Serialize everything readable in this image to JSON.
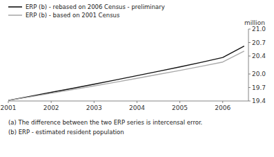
{
  "chart_data": {
    "type": "line",
    "ylabel": "million",
    "annotations": [
      "(a) The difference between the two ERP series is intercensal error.",
      "(b) ERP - estimated resident population"
    ],
    "x": [
      2001.0,
      2001.5,
      2002.0,
      2002.5,
      2003.0,
      2003.5,
      2004.0,
      2004.5,
      2005.0,
      2005.5,
      2006.0,
      2006.5
    ],
    "series": [
      {
        "name": "ERP (b) - rebased on 2006 Census - preliminary",
        "color": "#111111",
        "values": [
          19.413,
          19.5,
          19.593,
          19.681,
          19.773,
          19.868,
          19.963,
          20.06,
          20.158,
          20.26,
          20.367,
          20.62
        ]
      },
      {
        "name": "ERP (b) - based on 2001 Census",
        "color": "#aaaaaa",
        "values": [
          19.413,
          19.49,
          19.572,
          19.651,
          19.734,
          19.818,
          19.904,
          19.992,
          20.079,
          20.171,
          20.266,
          20.51
        ]
      }
    ],
    "xlim": [
      2001.0,
      2006.6
    ],
    "xticks": [
      2001,
      2002,
      2003,
      2004,
      2005,
      2006
    ],
    "ylim": [
      19.4,
      21.0
    ],
    "yticks": [
      19.4,
      19.7,
      {
        "value": 20.0,
        "label": "20.0"
      },
      20.4,
      20.7,
      {
        "value": 21.0,
        "label": "21.0"
      }
    ],
    "grid": false,
    "legend": "top"
  }
}
